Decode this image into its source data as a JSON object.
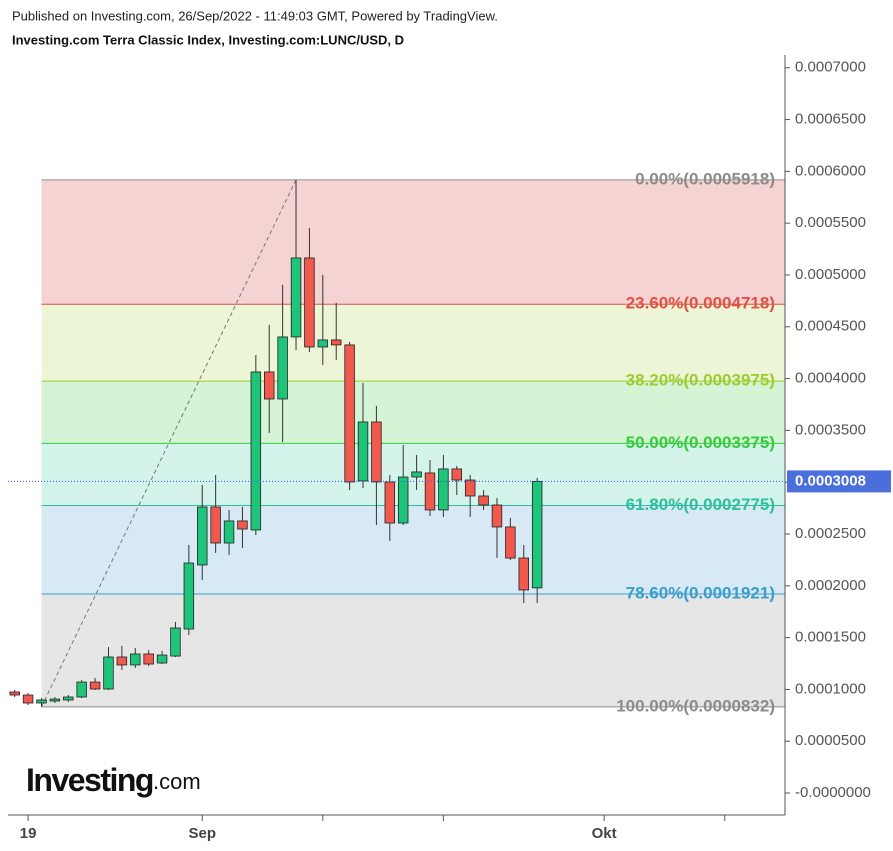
{
  "header": {
    "published": "Published on Investing.com, 26/Sep/2022 - 11:49:03 GMT, Powered by TradingView.",
    "symbol": "Investing.com Terra Classic Index, Investing.com:LUNC/USD, D"
  },
  "logo": {
    "name": "Investing",
    "suffix": ".com"
  },
  "chart_data": {
    "type": "candlestick",
    "categories": [
      null,
      "19",
      null,
      null,
      null,
      null,
      null,
      null,
      null,
      null,
      null,
      null,
      null,
      null,
      "Sep",
      null,
      null,
      null,
      null,
      null,
      null,
      null,
      null,
      null,
      null,
      null,
      null,
      null,
      null,
      null,
      null,
      null,
      null,
      null,
      null,
      null,
      null,
      null,
      null,
      null,
      null,
      null,
      null,
      null,
      "Okt",
      null,
      null,
      null,
      null,
      null,
      null,
      null,
      null,
      null,
      null,
      null,
      null,
      null
    ],
    "xticks": [
      1,
      14,
      23,
      32,
      44,
      53
    ],
    "open": [
      9.75e-05,
      9.46e-05,
      8.69e-05,
      8.88e-05,
      8.98e-05,
      9.27e-05,
      0.0001071,
      0.0001004,
      0.0001313,
      0.0001236,
      0.0001342,
      0.0001255,
      0.0001322,
      0.0001583,
      0.0002201,
      0.0002761,
      0.0002413,
      0.0002626,
      0.0002539,
      0.0004064,
      0.0003803,
      0.0004402,
      0.0005164,
      0.0004305,
      0.0004373,
      0.0004325,
      0.0003012,
      0.0003581,
      0.0003002,
      0.0002606,
      0.000305,
      0.0003089,
      0.0002732,
      0.0003128,
      0.0003021,
      0.0002867,
      0.000278,
      0.0002568,
      0.0002268,
      0.000198,
      null,
      null,
      null,
      null,
      null,
      null,
      null,
      null,
      null,
      null,
      null,
      null,
      null,
      null,
      null,
      null,
      null,
      null
    ],
    "high": [
      9.94e-05,
      9.65e-05,
      9.17e-05,
      9.27e-05,
      9.46e-05,
      0.0001091,
      0.000111,
      0.0001409,
      0.0001419,
      0.00014,
      0.000138,
      0.0001371,
      0.0001651,
      0.0002394,
      0.0002973,
      0.000307,
      0.0002732,
      0.0002761,
      0.0004228,
      0.0004518,
      0.0004904,
      0.0005918,
      0.0005454,
      0.0005,
      0.000473,
      0.0004353,
      0.0003958,
      0.0003736,
      0.000307,
      0.0003359,
      0.0003263,
      0.0003214,
      0.0003263,
      0.0003157,
      0.000307,
      0.0002925,
      0.0002848,
      0.0002655,
      0.0002394,
      0.0003041,
      null,
      null,
      null,
      null,
      null,
      null,
      null,
      null,
      null,
      null,
      null,
      null,
      null,
      null,
      null,
      null,
      null,
      null
    ],
    "low": [
      9.27e-05,
      8.49e-05,
      8.32e-05,
      8.69e-05,
      8.78e-05,
      9.17e-05,
      9.94e-05,
      9.94e-05,
      0.0001187,
      0.0001207,
      0.0001226,
      0.0001245,
      0.0001313,
      0.0001525,
      0.0002056,
      0.0002317,
      0.0002297,
      0.0002365,
      0.000249,
      0.0003475,
      0.0003388,
      0.0004276,
      0.0004257,
      0.0004131,
      0.000418,
      0.0002925,
      0.0002944,
      0.0002587,
      0.0002433,
      0.0002587,
      0.0002925,
      0.0002674,
      0.0002664,
      0.0002877,
      0.0002664,
      0.0002732,
      0.0002268,
      0.0002249,
      0.0001834,
      0.0001834,
      null,
      null,
      null,
      null,
      null,
      null,
      null,
      null,
      null,
      null,
      null,
      null,
      null,
      null,
      null,
      null,
      null,
      null
    ],
    "close": [
      9.46e-05,
      8.69e-05,
      8.98e-05,
      9.07e-05,
      9.27e-05,
      0.0001071,
      0.0001004,
      0.0001313,
      0.0001236,
      0.0001342,
      0.0001245,
      0.0001332,
      0.0001593,
      0.000222,
      0.0002761,
      0.0002413,
      0.0002626,
      0.0002548,
      0.0004064,
      0.0003803,
      0.0004402,
      0.0005164,
      0.0004305,
      0.0004373,
      0.0004325,
      0.0003002,
      0.0003581,
      0.0003002,
      0.0002606,
      0.000305,
      0.0003099,
      0.0002732,
      0.0003128,
      0.0003021,
      0.0002867,
      0.000278,
      0.0002568,
      0.0002268,
      0.000196,
      0.0003008,
      null,
      null,
      null,
      null,
      null,
      null,
      null,
      null,
      null,
      null,
      null,
      null,
      null,
      null,
      null,
      null,
      null,
      null
    ],
    "up_color": "#1dc47a",
    "down_color": "#f2594e",
    "ylim": [
      -2.12e-05,
      0.0007123
    ],
    "yticks": [
      {
        "value": 0,
        "label": "-0.0000000"
      },
      {
        "value": 5e-05,
        "label": "0.0000500"
      },
      {
        "value": 0.0001,
        "label": "0.0001000"
      },
      {
        "value": 0.00015,
        "label": "0.0001500"
      },
      {
        "value": 0.0002,
        "label": "0.0002000"
      },
      {
        "value": 0.00025,
        "label": "0.0002500"
      },
      {
        "value": 0.0003,
        "label": "0.0003000"
      },
      {
        "value": 0.00035,
        "label": "0.0003500"
      },
      {
        "value": 0.0004,
        "label": "0.0004000"
      },
      {
        "value": 0.00045,
        "label": "0.0004500"
      },
      {
        "value": 0.0005,
        "label": "0.0005000"
      },
      {
        "value": 0.00055,
        "label": "0.0005500"
      },
      {
        "value": 0.0006,
        "label": "0.0006000"
      },
      {
        "value": 0.00065,
        "label": "0.0006500"
      },
      {
        "value": 0.0007,
        "label": "0.0007000"
      }
    ],
    "last_price": 0.0003008,
    "last_price_color": "#4a6fdc",
    "fib_start": 2,
    "fib_end": 21,
    "fib_levels": [
      {
        "value": 0.0005918,
        "label": "0.00%(0.0005918)",
        "color": "#8c8c8c",
        "zone": "#f5d3d3"
      },
      {
        "value": 0.0004718,
        "label": "23.60%(0.0004718)",
        "color": "#de5345",
        "zone": "#ecf5d6"
      },
      {
        "value": 0.0003975,
        "label": "38.20%(0.0003975)",
        "color": "#9ccc32",
        "zone": "#d5f3d5"
      },
      {
        "value": 0.0003375,
        "label": "50.00%(0.0003375)",
        "color": "#33cc3c",
        "zone": "#d4f3ea"
      },
      {
        "value": 0.0002775,
        "label": "61.80%(0.0002775)",
        "color": "#2ebf9c",
        "zone": "#d6e9f5"
      },
      {
        "value": 0.0001921,
        "label": "78.60%(0.0001921)",
        "color": "#3a9dcc",
        "zone": "#e6e6e6"
      },
      {
        "value": 8.32e-05,
        "label": "100.00%(0.0000832)",
        "color": "#8c8c8c",
        "zone": null
      }
    ]
  }
}
